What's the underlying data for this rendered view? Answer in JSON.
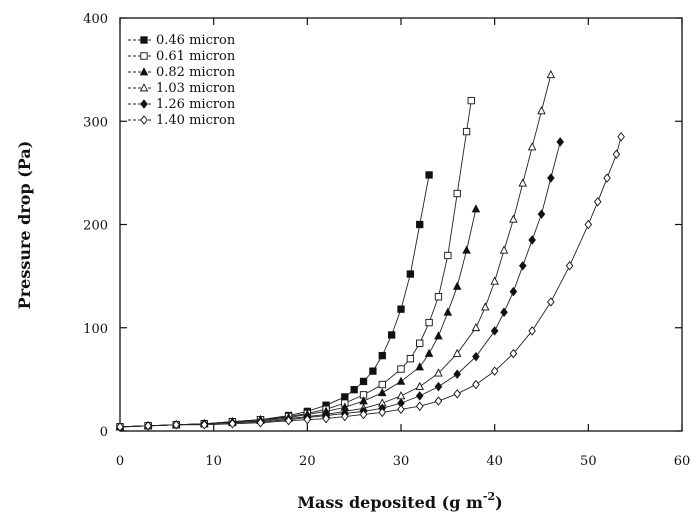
{
  "chart_data": {
    "type": "line",
    "title": "",
    "xlabel": "Mass deposited (g m",
    "xlabel_sup": "-2",
    "xlabel_end": ")",
    "ylabel": "Pressure drop (Pa)",
    "xlim": [
      0,
      60
    ],
    "ylim": [
      0,
      400
    ],
    "xticks": [
      0,
      10,
      20,
      30,
      40,
      50,
      60
    ],
    "yticks": [
      0,
      100,
      200,
      300,
      400
    ],
    "grid": false,
    "legend_position": "top-left",
    "series": [
      {
        "name": "0.46 micron",
        "marker": "filled-square",
        "x": [
          0,
          3,
          6,
          9,
          12,
          15,
          18,
          20,
          22,
          24,
          25,
          26,
          27,
          28,
          29,
          30,
          31,
          32,
          33
        ],
        "y": [
          4,
          5,
          6,
          7,
          9,
          11,
          15,
          19,
          25,
          33,
          40,
          48,
          58,
          73,
          93,
          118,
          152,
          200,
          248
        ]
      },
      {
        "name": "0.61 micron",
        "marker": "open-square",
        "x": [
          0,
          3,
          6,
          9,
          12,
          15,
          18,
          20,
          22,
          24,
          26,
          28,
          30,
          31,
          32,
          33,
          34,
          35,
          36,
          37,
          37.5
        ],
        "y": [
          4,
          5,
          6,
          7,
          9,
          11,
          14,
          17,
          21,
          27,
          35,
          45,
          60,
          70,
          85,
          105,
          130,
          170,
          230,
          290,
          320
        ]
      },
      {
        "name": "0.82 micron",
        "marker": "filled-triangle",
        "x": [
          0,
          3,
          6,
          9,
          12,
          15,
          18,
          20,
          22,
          24,
          26,
          28,
          30,
          32,
          33,
          34,
          35,
          36,
          37,
          38
        ],
        "y": [
          4,
          5,
          6,
          7,
          9,
          11,
          13,
          16,
          19,
          23,
          29,
          37,
          48,
          62,
          75,
          92,
          115,
          140,
          175,
          215
        ]
      },
      {
        "name": "1.03 micron",
        "marker": "open-triangle",
        "x": [
          0,
          3,
          6,
          9,
          12,
          15,
          18,
          20,
          22,
          24,
          26,
          28,
          30,
          32,
          34,
          36,
          38,
          39,
          40,
          41,
          42,
          43,
          44,
          45,
          46
        ],
        "y": [
          4,
          5,
          6,
          7,
          8,
          10,
          12,
          14,
          16,
          19,
          22,
          27,
          34,
          43,
          56,
          75,
          100,
          120,
          145,
          175,
          205,
          240,
          275,
          310,
          345
        ]
      },
      {
        "name": "1.26 micron",
        "marker": "filled-diamond",
        "x": [
          0,
          3,
          6,
          9,
          12,
          15,
          18,
          20,
          22,
          24,
          26,
          28,
          30,
          32,
          34,
          36,
          38,
          40,
          41,
          42,
          43,
          44,
          45,
          46,
          47
        ],
        "y": [
          4,
          5,
          6,
          7,
          8,
          9,
          11,
          13,
          15,
          17,
          19,
          22,
          27,
          34,
          43,
          55,
          72,
          97,
          115,
          135,
          160,
          185,
          210,
          245,
          280
        ]
      },
      {
        "name": "1.40 micron",
        "marker": "open-diamond",
        "x": [
          0,
          3,
          6,
          9,
          12,
          15,
          18,
          20,
          22,
          24,
          26,
          28,
          30,
          32,
          34,
          36,
          38,
          40,
          42,
          44,
          46,
          48,
          50,
          51,
          52,
          53,
          53.5
        ],
        "y": [
          4,
          5,
          6,
          6,
          7,
          8,
          10,
          11,
          12,
          14,
          16,
          18,
          21,
          24,
          29,
          36,
          45,
          58,
          75,
          97,
          125,
          160,
          200,
          222,
          245,
          268,
          285
        ]
      }
    ]
  }
}
